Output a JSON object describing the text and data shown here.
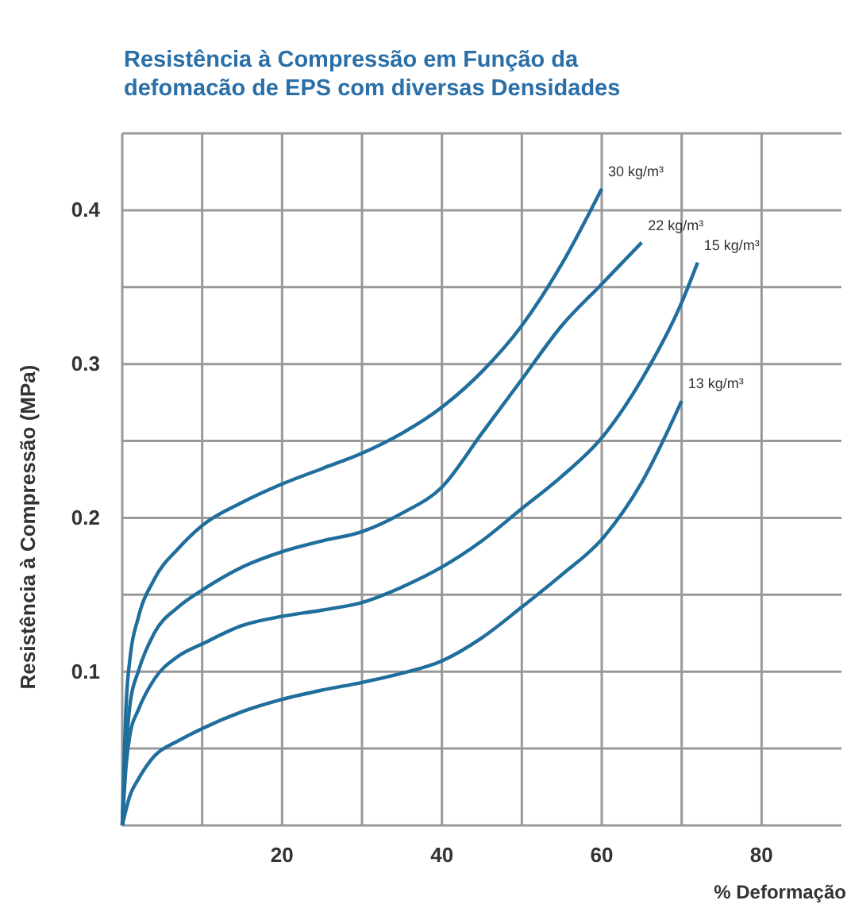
{
  "chart_data": {
    "type": "line",
    "title": "Resistência à Compressão em Função da\ndefomacão de EPS com diversas Densidades",
    "xlabel": "% Deformação",
    "ylabel": "Resistência à Compressão (MPa)",
    "xlim": [
      0,
      90
    ],
    "ylim": [
      0,
      0.45
    ],
    "xticks": [
      {
        "value": 10,
        "label": null
      },
      20,
      {
        "value": 30,
        "label": null
      },
      40,
      {
        "value": 50,
        "label": null
      },
      60,
      {
        "value": 70,
        "label": null
      },
      80
    ],
    "yticks": [
      {
        "value": 0.05,
        "label": null
      },
      0.1,
      {
        "value": 0.15,
        "label": null
      },
      0.2,
      {
        "value": 0.25,
        "label": null
      },
      0.3,
      {
        "value": 0.35,
        "label": null
      },
      0.4
    ],
    "grid": true,
    "series": [
      {
        "name": "30 kg/m³",
        "color": "#1f6e9c",
        "x": [
          0,
          0.5,
          1,
          2,
          4,
          7,
          10,
          15,
          20,
          25,
          30,
          35,
          40,
          45,
          50,
          55,
          60
        ],
        "values": [
          0,
          0.08,
          0.11,
          0.135,
          0.16,
          0.18,
          0.195,
          0.21,
          0.222,
          0.232,
          0.242,
          0.255,
          0.272,
          0.295,
          0.325,
          0.365,
          0.414
        ]
      },
      {
        "name": "22 kg/m³",
        "color": "#1f6e9c",
        "x": [
          0,
          0.5,
          1,
          2,
          4,
          7,
          10,
          15,
          20,
          25,
          30,
          35,
          40,
          45,
          50,
          55,
          60,
          65
        ],
        "values": [
          0,
          0.05,
          0.08,
          0.1,
          0.125,
          0.142,
          0.153,
          0.168,
          0.178,
          0.185,
          0.191,
          0.203,
          0.22,
          0.255,
          0.29,
          0.325,
          0.352,
          0.379
        ]
      },
      {
        "name": "15 kg/m³",
        "color": "#1f6e9c",
        "x": [
          0,
          0.5,
          1,
          2,
          4,
          7,
          10,
          15,
          20,
          25,
          30,
          35,
          40,
          45,
          50,
          55,
          60,
          65,
          70,
          72
        ],
        "values": [
          0,
          0.04,
          0.06,
          0.075,
          0.095,
          0.11,
          0.118,
          0.13,
          0.136,
          0.14,
          0.145,
          0.155,
          0.168,
          0.185,
          0.206,
          0.227,
          0.252,
          0.29,
          0.34,
          0.366
        ]
      },
      {
        "name": "13 kg/m³",
        "color": "#1f6e9c",
        "x": [
          0,
          1,
          2,
          4,
          7,
          10,
          15,
          20,
          25,
          30,
          35,
          40,
          45,
          50,
          55,
          60,
          65,
          70
        ],
        "values": [
          0,
          0.02,
          0.03,
          0.045,
          0.055,
          0.063,
          0.074,
          0.082,
          0.088,
          0.093,
          0.099,
          0.107,
          0.122,
          0.142,
          0.163,
          0.186,
          0.223,
          0.276
        ]
      }
    ]
  }
}
